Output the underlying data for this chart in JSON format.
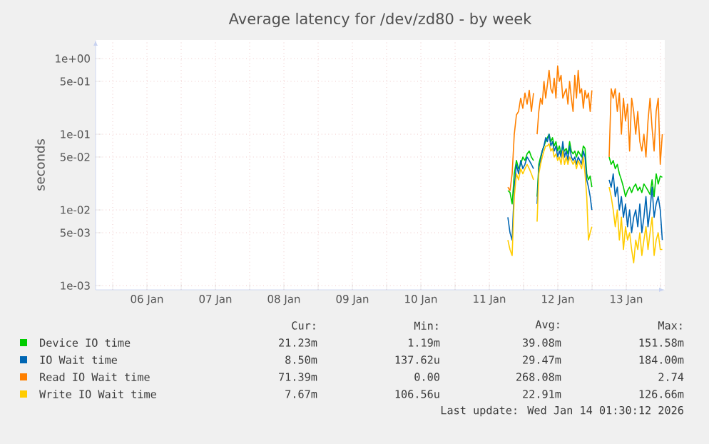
{
  "chart_data": {
    "type": "line",
    "title": "Average latency for /dev/zd80 - by week",
    "ylabel": "seconds",
    "log": "y",
    "grid": true,
    "legend": "bottom",
    "xlim": [
      "2026-01-05T18:00",
      "2026-01-14T01:30"
    ],
    "ylim": [
      0.00088,
      1.76
    ],
    "xticks": [
      {
        "value": "2026-01-06",
        "label": null
      },
      {
        "value": "2026-01-06T12:00",
        "label": "06 Jan"
      },
      {
        "value": "2026-01-07",
        "label": null
      },
      {
        "value": "2026-01-07T12:00",
        "label": "07 Jan"
      },
      {
        "value": "2026-01-08",
        "label": null
      },
      {
        "value": "2026-01-08T12:00",
        "label": "08 Jan"
      },
      {
        "value": "2026-01-09",
        "label": null
      },
      {
        "value": "2026-01-09T12:00",
        "label": "09 Jan"
      },
      {
        "value": "2026-01-10",
        "label": null
      },
      {
        "value": "2026-01-10T12:00",
        "label": "10 Jan"
      },
      {
        "value": "2026-01-11",
        "label": null
      },
      {
        "value": "2026-01-11T12:00",
        "label": "11 Jan"
      },
      {
        "value": "2026-01-12",
        "label": null
      },
      {
        "value": "2026-01-12T12:00",
        "label": "12 Jan"
      },
      {
        "value": "2026-01-13",
        "label": null
      },
      {
        "value": "2026-01-13T12:00",
        "label": "13 Jan"
      },
      {
        "value": "2026-01-14",
        "label": null
      }
    ],
    "yticks": [
      {
        "value": 0.001,
        "label": "1e-03"
      },
      {
        "value": 0.005,
        "label": "5e-03"
      },
      {
        "value": 0.01,
        "label": "1e-02"
      },
      {
        "value": 0.05,
        "label": "5e-02"
      },
      {
        "value": 0.1,
        "label": "1e-01"
      },
      {
        "value": 0.5,
        "label": "5e-01"
      },
      {
        "value": 1,
        "label": "1e+00"
      }
    ],
    "x": [
      "2026-01-11T18:30",
      "2026-01-11T19:15",
      "2026-01-11T20:00",
      "2026-01-11T20:45",
      "2026-01-11T21:30",
      "2026-01-11T22:15",
      "2026-01-11T23:00",
      "2026-01-11T23:45",
      "2026-01-12T00:30",
      "2026-01-12T01:15",
      "2026-01-12T02:00",
      "2026-01-12T02:45",
      "2026-01-12T03:30",
      "2026-01-12T04:00",
      "2026-01-12T04:45",
      "2026-01-12T05:21",
      "2026-01-12T05:57",
      "2026-01-12T06:33",
      "2026-01-12T07:09",
      "2026-01-12T07:45",
      "2026-01-12T08:21",
      "2026-01-12T08:57",
      "2026-01-12T09:33",
      "2026-01-12T10:09",
      "2026-01-12T10:45",
      "2026-01-12T11:21",
      "2026-01-12T11:57",
      "2026-01-12T12:33",
      "2026-01-12T13:09",
      "2026-01-12T13:45",
      "2026-01-12T14:21",
      "2026-01-12T14:57",
      "2026-01-12T15:33",
      "2026-01-12T16:09",
      "2026-01-12T16:45",
      "2026-01-12T17:21",
      "2026-01-12T17:57",
      "2026-01-12T18:33",
      "2026-01-12T19:09",
      "2026-01-12T19:45",
      "2026-01-12T20:21",
      "2026-01-12T20:57",
      "2026-01-12T21:33",
      "2026-01-12T22:09",
      "2026-01-12T22:45",
      "2026-01-12T23:21",
      "2026-01-12T23:57",
      "2026-01-13T03:00",
      "2026-01-13T06:00",
      "2026-01-13T06:43",
      "2026-01-13T07:26",
      "2026-01-13T08:09",
      "2026-01-13T08:52",
      "2026-01-13T09:35",
      "2026-01-13T10:18",
      "2026-01-13T11:01",
      "2026-01-13T11:44",
      "2026-01-13T12:27",
      "2026-01-13T13:10",
      "2026-01-13T13:53",
      "2026-01-13T14:36",
      "2026-01-13T15:19",
      "2026-01-13T16:02",
      "2026-01-13T16:45",
      "2026-01-13T17:28",
      "2026-01-13T18:11",
      "2026-01-13T18:54",
      "2026-01-13T19:37",
      "2026-01-13T20:20",
      "2026-01-13T21:03",
      "2026-01-13T21:46",
      "2026-01-13T22:29",
      "2026-01-13T23:12",
      "2026-01-13T23:55",
      "2026-01-14T00:38"
    ],
    "series": [
      {
        "name": "Device IO time",
        "color": "#00cc00",
        "values": [
          0.018,
          0.017,
          0.012,
          0.03,
          0.045,
          0.035,
          0.04,
          0.05,
          0.045,
          0.055,
          0.06,
          0.05,
          0.045,
          null,
          0.015,
          0.04,
          0.05,
          0.06,
          0.07,
          0.08,
          0.09,
          0.1,
          0.08,
          0.09,
          0.07,
          0.08,
          0.06,
          0.07,
          0.055,
          0.07,
          0.06,
          0.065,
          0.055,
          0.08,
          0.06,
          0.055,
          0.06,
          0.05,
          0.06,
          0.055,
          0.05,
          0.07,
          0.065,
          0.03,
          0.025,
          0.028,
          0.02,
          null,
          0.05,
          0.04,
          0.045,
          0.035,
          0.04,
          0.03,
          0.025,
          0.02,
          0.015,
          0.018,
          0.02,
          0.017,
          0.02,
          0.022,
          0.018,
          0.02,
          0.017,
          0.022,
          0.02,
          0.018,
          0.016,
          0.025,
          0.015,
          0.03,
          0.022,
          0.028,
          0.027
        ]
      },
      {
        "name": "IO Wait time",
        "color": "#0066b3",
        "values": [
          0.008,
          0.005,
          0.004,
          0.02,
          0.04,
          0.03,
          0.045,
          0.035,
          0.04,
          0.05,
          0.045,
          0.04,
          0.035,
          null,
          0.012,
          0.035,
          0.045,
          0.06,
          0.07,
          0.09,
          0.08,
          0.1,
          0.07,
          0.08,
          0.06,
          0.07,
          0.05,
          0.06,
          0.05,
          0.08,
          0.05,
          0.06,
          0.045,
          0.07,
          0.05,
          0.045,
          0.05,
          0.04,
          0.05,
          0.045,
          0.04,
          0.06,
          0.05,
          0.025,
          0.02,
          0.015,
          0.01,
          null,
          0.025,
          0.02,
          0.03,
          0.015,
          0.02,
          0.01,
          0.015,
          0.008,
          0.012,
          0.006,
          0.01,
          0.005,
          0.008,
          0.01,
          0.006,
          0.012,
          0.005,
          0.008,
          0.015,
          0.006,
          0.01,
          0.02,
          0.008,
          0.012,
          0.015,
          0.01,
          0.004
        ]
      },
      {
        "name": "Read IO Wait time",
        "color": "#ff8000",
        "values": [
          0.02,
          0.018,
          0.03,
          0.1,
          0.18,
          0.2,
          0.3,
          0.22,
          0.35,
          0.25,
          0.38,
          0.2,
          0.35,
          null,
          0.1,
          0.2,
          0.3,
          0.25,
          0.5,
          0.3,
          0.45,
          0.7,
          0.4,
          0.35,
          0.55,
          0.3,
          0.8,
          0.5,
          0.6,
          0.3,
          0.35,
          0.4,
          0.25,
          0.5,
          0.3,
          0.2,
          0.6,
          0.3,
          0.7,
          0.35,
          0.4,
          0.22,
          0.38,
          0.3,
          0.35,
          0.2,
          0.38,
          null,
          0.05,
          0.4,
          0.3,
          0.4,
          0.2,
          0.35,
          0.1,
          0.3,
          0.15,
          0.25,
          0.06,
          0.3,
          0.2,
          0.1,
          0.2,
          0.08,
          0.06,
          0.1,
          0.05,
          0.15,
          0.3,
          0.12,
          0.06,
          0.2,
          0.3,
          0.04,
          0.1
        ]
      },
      {
        "name": "Write IO Wait time",
        "color": "#ffcc00",
        "values": [
          0.004,
          0.003,
          0.0025,
          0.015,
          0.03,
          0.025,
          0.035,
          0.03,
          0.035,
          0.04,
          0.035,
          0.03,
          0.025,
          null,
          0.007,
          0.03,
          0.04,
          0.05,
          0.06,
          0.07,
          0.07,
          0.075,
          0.06,
          0.065,
          0.05,
          0.055,
          0.045,
          0.05,
          0.04,
          0.06,
          0.04,
          0.05,
          0.04,
          0.05,
          0.045,
          0.04,
          0.045,
          0.035,
          0.045,
          0.04,
          0.035,
          0.05,
          0.03,
          0.015,
          0.004,
          0.005,
          0.006,
          null,
          0.02,
          0.015,
          0.01,
          0.006,
          0.01,
          0.004,
          0.008,
          0.003,
          0.006,
          0.004,
          0.005,
          0.003,
          0.002,
          0.004,
          0.003,
          0.005,
          0.0025,
          0.004,
          0.006,
          0.003,
          0.005,
          0.008,
          0.0025,
          0.004,
          0.005,
          0.003,
          0.003
        ]
      }
    ],
    "annotations": [
      "Cur:",
      "Min:",
      "Avg:",
      "Max:",
      "21.23m",
      "1.19m",
      "39.08m",
      "151.58m",
      "8.50m",
      "137.62u",
      "29.47m",
      "184.00m",
      "71.39m",
      "0.00",
      "268.08m",
      "2.74",
      "7.67m",
      "106.56u",
      "22.91m",
      "126.66m",
      "Last update: Wed Jan 14 01:30:12 2026"
    ]
  }
}
